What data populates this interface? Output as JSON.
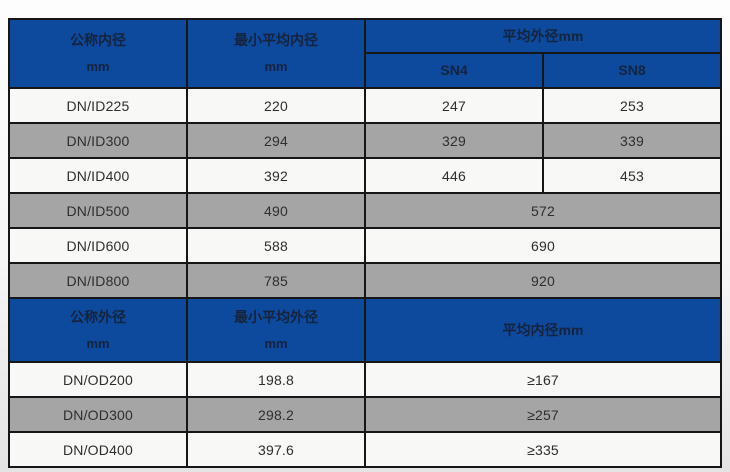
{
  "colors": {
    "header_bg": "#0d4a9d",
    "header_text": "#16233d",
    "stripe_gray": "#a5a5a5",
    "stripe_white": "#f8f8f7",
    "border": "#161616"
  },
  "table_id": {
    "headers": {
      "col1_line1": "公称内径",
      "col1_line2": "mm",
      "col2_line1": "最小平均内径",
      "col2_line2": "mm",
      "span_label": "平均外径mm",
      "sub_col1": "SN4",
      "sub_col2": "SN8"
    },
    "rows": [
      {
        "dn": "DN/ID225",
        "min_avg": "220",
        "sn4": "247",
        "sn8": "253"
      },
      {
        "dn": "DN/ID300",
        "min_avg": "294",
        "sn4": "329",
        "sn8": "339"
      },
      {
        "dn": "DN/ID400",
        "min_avg": "392",
        "sn4": "446",
        "sn8": "453"
      },
      {
        "dn": "DN/ID500",
        "min_avg": "490",
        "merged_value": "572"
      },
      {
        "dn": "DN/ID600",
        "min_avg": "588",
        "merged_value": "690"
      },
      {
        "dn": "DN/ID800",
        "min_avg": "785",
        "merged_value": "920"
      }
    ]
  },
  "table_od": {
    "headers": {
      "col1_line1": "公称外径",
      "col1_line2": "mm",
      "col2_line1": "最小平均外径",
      "col2_line2": "mm",
      "span_label": "平均内径mm"
    },
    "rows": [
      {
        "dn": "DN/OD200",
        "min_avg": "198.8",
        "merged_value": "≥167"
      },
      {
        "dn": "DN/OD300",
        "min_avg": "298.2",
        "merged_value": "≥257"
      },
      {
        "dn": "DN/OD400",
        "min_avg": "397.6",
        "merged_value": "≥335"
      }
    ]
  }
}
